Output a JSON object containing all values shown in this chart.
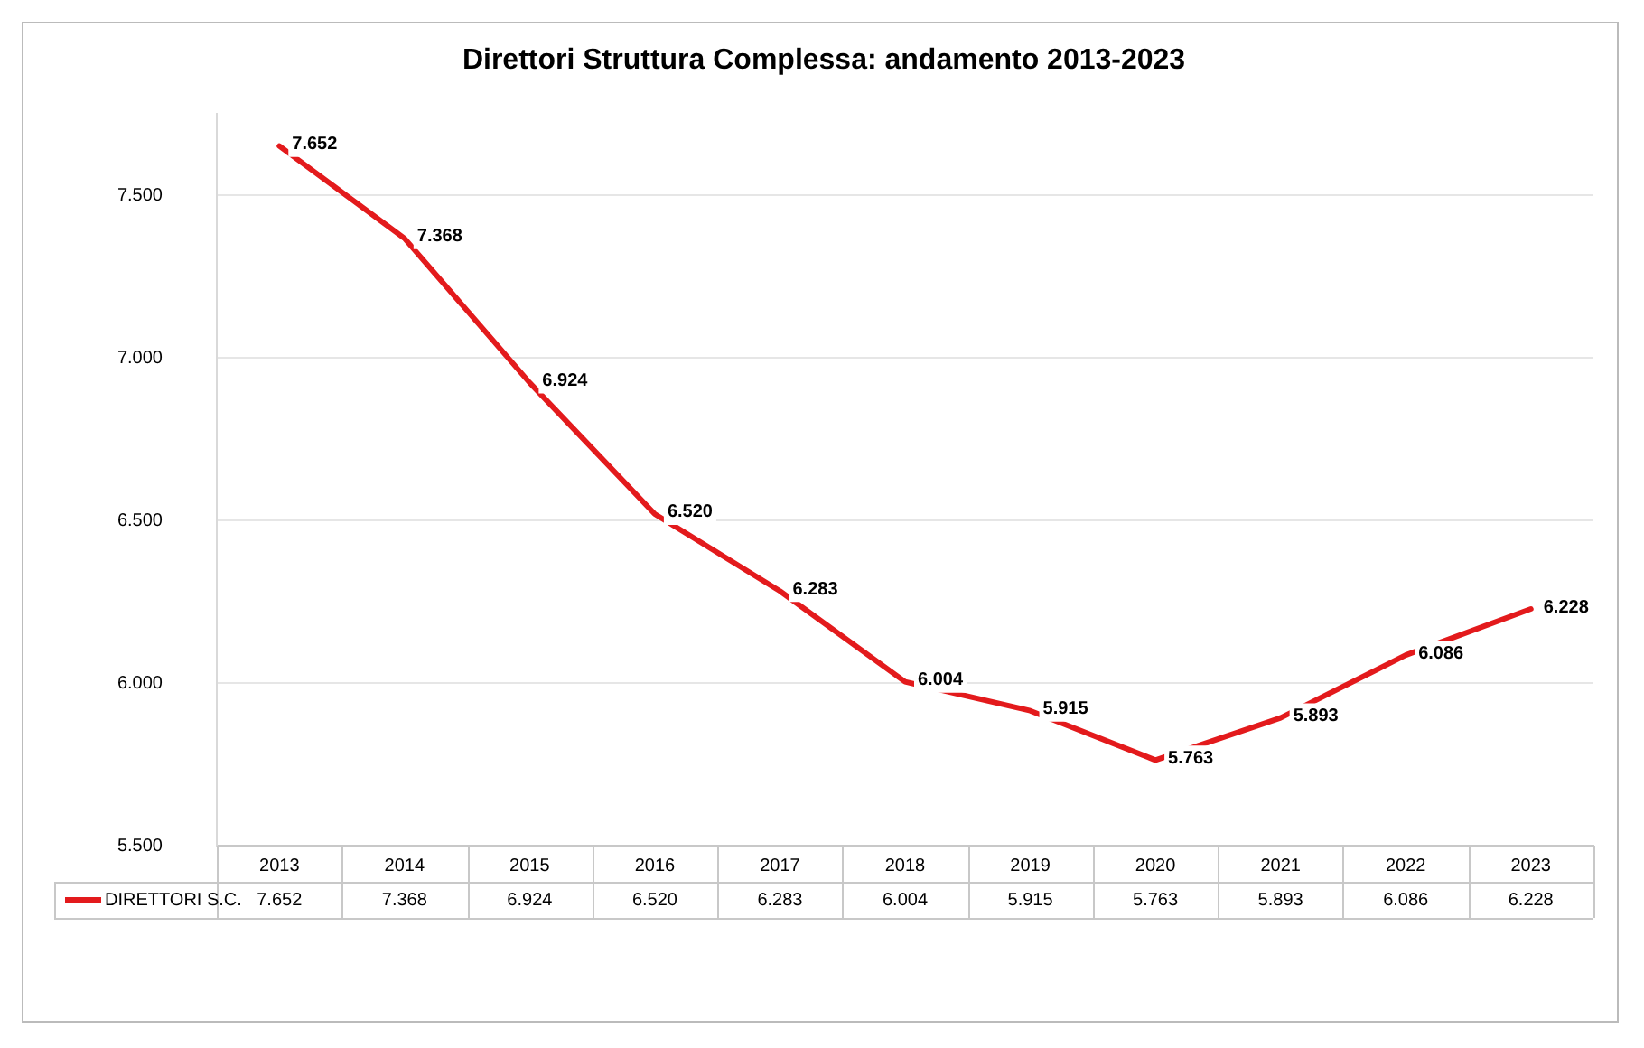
{
  "chart_data": {
    "type": "line",
    "title": "Direttori Struttura Complessa: andamento 2013-2023",
    "categories": [
      "2013",
      "2014",
      "2015",
      "2016",
      "2017",
      "2018",
      "2019",
      "2020",
      "2021",
      "2022",
      "2023"
    ],
    "series": [
      {
        "name": "DIRETTORI S.C.",
        "color": "#e31a1c",
        "values": [
          7652,
          7368,
          6924,
          6520,
          6283,
          6004,
          5915,
          5763,
          5893,
          6086,
          6228
        ],
        "value_labels": [
          "7.652",
          "7.368",
          "6.924",
          "6.520",
          "6.283",
          "6.004",
          "5.915",
          "5.763",
          "5.893",
          "6.086",
          "6.228"
        ]
      }
    ],
    "ylim": [
      5500,
      7750
    ],
    "yticks": [
      {
        "value": 5500,
        "label": "5.500"
      },
      {
        "value": 6000,
        "label": "6.000"
      },
      {
        "value": 6500,
        "label": "6.500"
      },
      {
        "value": 7000,
        "label": "7.000"
      },
      {
        "value": 7500,
        "label": "7.500"
      }
    ],
    "grid": "y",
    "legend": "bottom",
    "marker": "none",
    "line_style": "solid"
  }
}
